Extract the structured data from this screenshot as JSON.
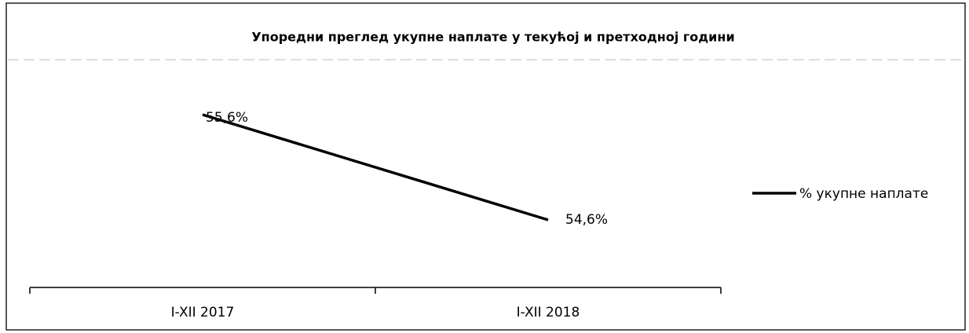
{
  "chart_data": {
    "type": "line",
    "title": "Упоредни преглед укупне наплате у текућој и претходној години",
    "categories": [
      "I-XII 2017",
      "I-XII 2018"
    ],
    "series": [
      {
        "name": "% укупне наплате",
        "color": "#000000",
        "values": [
          55.6,
          54.6
        ],
        "value_labels": [
          "55,6%",
          "54,6%"
        ]
      }
    ]
  }
}
